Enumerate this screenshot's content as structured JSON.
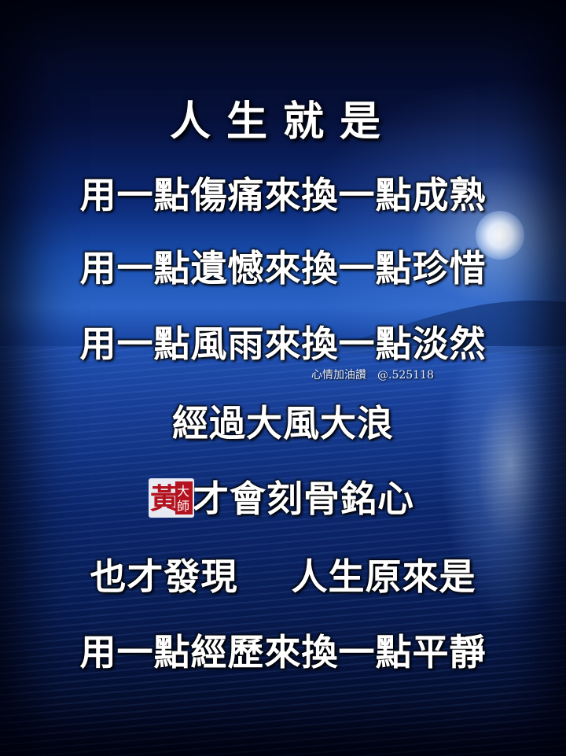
{
  "title": "人生就是",
  "lines": [
    "用一點傷痛來換一點成熟",
    "用一點遺憾來換一點珍惜",
    "用一點風雨來換一點淡然",
    "經過大風大浪",
    "才會刻骨銘心",
    "也才發現",
    "人生原來是",
    "用一點經歷來換一點平靜"
  ],
  "watermark": "心情加油讚　@.525118",
  "seal": {
    "chars": [
      "黃",
      "大",
      "師"
    ],
    "color": "#b3121e"
  }
}
